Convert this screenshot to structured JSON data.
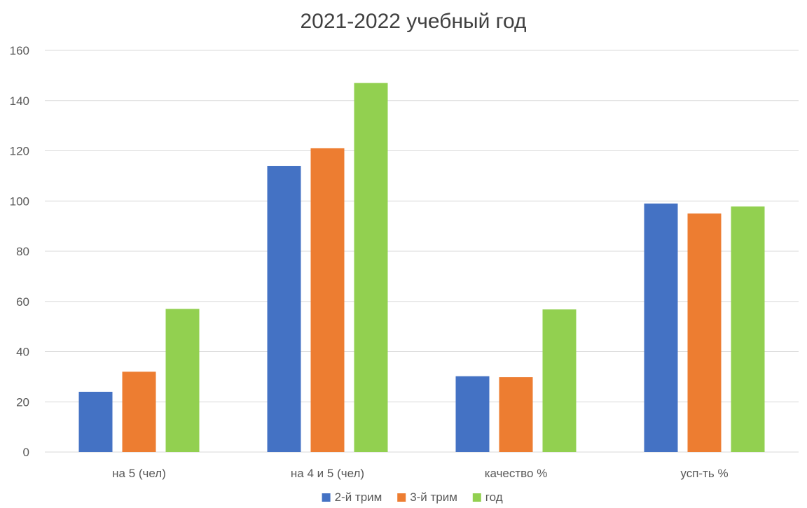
{
  "chart_data": {
    "type": "bar",
    "title": "2021-2022 учебный год",
    "categories": [
      "на 5 (чел)",
      "на 4 и 5 (чел)",
      "качество %",
      "усп-ть %"
    ],
    "series": [
      {
        "name": "2-й трим",
        "values": [
          24,
          114,
          30.2,
          99
        ],
        "color": "#4472C4"
      },
      {
        "name": "3-й трим",
        "values": [
          32,
          121,
          29.8,
          95
        ],
        "color": "#ED7D31"
      },
      {
        "name": "год",
        "values": [
          57,
          147,
          56.8,
          97.8
        ],
        "color": "#92D050"
      }
    ],
    "ylim": [
      0,
      160
    ],
    "yticks": [
      0,
      20,
      40,
      60,
      80,
      100,
      120,
      140,
      160
    ],
    "grid": true,
    "legend_position": "bottom"
  }
}
